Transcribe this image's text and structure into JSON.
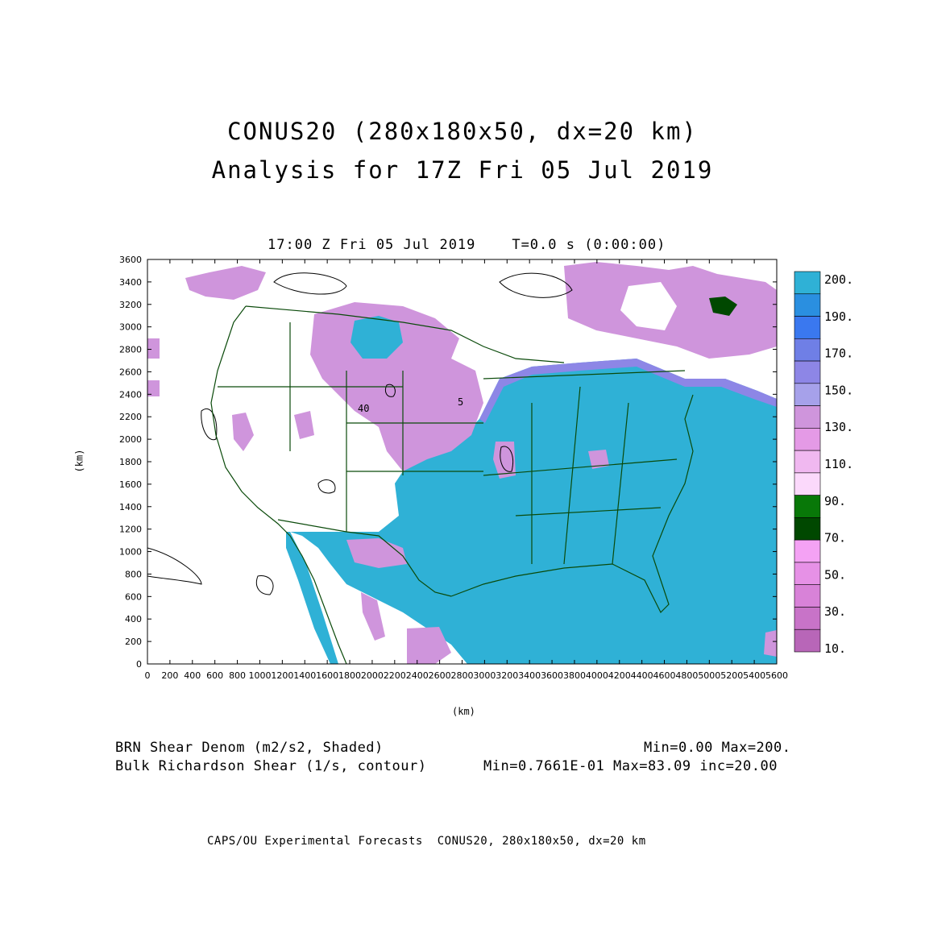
{
  "header": {
    "title_line1": "CONUS20 (280x180x50, dx=20 km)",
    "title_line2": "Analysis for 17Z Fri 05 Jul 2019"
  },
  "plot": {
    "time_label": "17:00 Z Fri 05 Jul 2019    T=0.0 s (0:00:00)",
    "x_axis_label": "(km)",
    "y_axis_label": "(km)",
    "x_ticks": [
      "0",
      "200",
      "400",
      "600",
      "800",
      "1000",
      "1200",
      "1400",
      "1600",
      "1800",
      "2000",
      "2200",
      "2400",
      "2600",
      "2800",
      "3000",
      "3200",
      "3400",
      "3600",
      "3800",
      "4000",
      "4200",
      "4400",
      "4600",
      "4800",
      "5000",
      "5200",
      "5400",
      "5600"
    ],
    "y_ticks": [
      "0",
      "200",
      "400",
      "600",
      "800",
      "1000",
      "1200",
      "1400",
      "1600",
      "1800",
      "2000",
      "2200",
      "2400",
      "2600",
      "2800",
      "3000",
      "3200",
      "3400",
      "3600"
    ],
    "contour_annotations": [
      "40",
      "5"
    ]
  },
  "colorbar": {
    "labels": [
      "200.",
      "190.",
      "170.",
      "150.",
      "130.",
      "110.",
      "90.",
      "70.",
      "50.",
      "30.",
      "10."
    ],
    "colors": [
      "#2fb1d6",
      "#2a8fe0",
      "#3a78ef",
      "#6f7fe6",
      "#8d86e6",
      "#a6a1ea",
      "#cf95dc",
      "#e49ae6",
      "#f0b8f0",
      "#fbd9fb",
      "#087808",
      "#004800",
      "#f4a2f4",
      "#e691e6",
      "#d882d8",
      "#c873c8",
      "#b866b8"
    ]
  },
  "footer": {
    "shaded_field": "BRN Shear Denom (m2/s2, Shaded)",
    "shaded_range": "Min=0.00 Max=200.",
    "contour_field": "Bulk Richardson Shear (1/s, contour)",
    "contour_range": "Min=0.7661E-01 Max=83.09 inc=20.00",
    "credit": "CAPS/OU Experimental Forecasts  CONUS20, 280x180x50, dx=20 km"
  }
}
